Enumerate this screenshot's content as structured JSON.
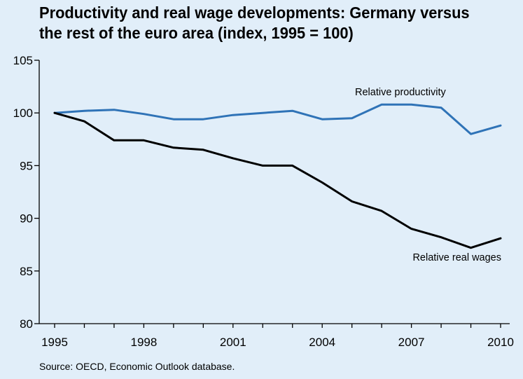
{
  "title_line1": "Productivity and real wage developments: Germany versus",
  "title_line2": "the rest of the euro area (index, 1995 = 100)",
  "source": "Source: OECD, Economic Outlook database.",
  "colors": {
    "background": "#e1eef9",
    "productivity": "#2f73b7",
    "wages": "#000000"
  },
  "chart_data": {
    "type": "line",
    "title": "Productivity and real wage developments: Germany versus the rest of the euro area (index, 1995 = 100)",
    "x": [
      1995,
      1996,
      1997,
      1998,
      1999,
      2000,
      2001,
      2002,
      2003,
      2004,
      2005,
      2006,
      2007,
      2008,
      2009,
      2010
    ],
    "xticks": [
      1995,
      1998,
      2001,
      2004,
      2007,
      2010
    ],
    "xlim": [
      1995,
      2010
    ],
    "ylim": [
      80,
      105
    ],
    "yticks": [
      80,
      85,
      90,
      95,
      100,
      105
    ],
    "grid": false,
    "series": [
      {
        "name": "Relative productivity",
        "color": "#2f73b7",
        "values": [
          100.0,
          100.2,
          100.3,
          99.9,
          99.4,
          99.4,
          99.8,
          100.0,
          100.2,
          99.4,
          99.5,
          100.8,
          100.8,
          100.5,
          98.0,
          98.8
        ]
      },
      {
        "name": "Relative real wages",
        "color": "#000000",
        "values": [
          100.0,
          99.2,
          97.4,
          97.4,
          96.7,
          96.5,
          95.7,
          95.0,
          95.0,
          93.4,
          91.6,
          90.7,
          89.0,
          88.2,
          87.2,
          88.1
        ]
      }
    ]
  }
}
